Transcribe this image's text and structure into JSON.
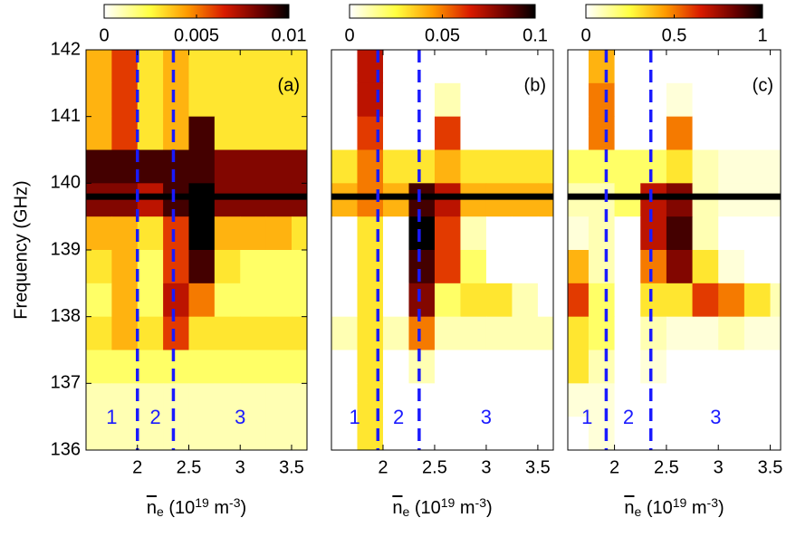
{
  "chart_data": [
    {
      "type": "heatmap",
      "panel_label": "(a)",
      "colormap": "hot_r",
      "clim": [
        0,
        0.01
      ],
      "colorbar_ticks": [
        0,
        0.005,
        0.01
      ],
      "ylabel": "Frequency (GHz)",
      "xlabel": [
        {
          "text": "n",
          "style": "over"
        },
        {
          "text": "e",
          "style": "sub"
        },
        {
          "text": " (10",
          "style": "normal"
        },
        {
          "text": "19",
          "style": "sup"
        },
        {
          "text": " m",
          "style": "normal"
        },
        {
          "text": "-3",
          "style": "sup"
        },
        {
          "text": ")",
          "style": "normal"
        }
      ],
      "xlim": [
        1.5,
        3.65
      ],
      "ylim": [
        136,
        142
      ],
      "xticks": [
        2,
        2.5,
        3,
        3.5
      ],
      "yticks": [
        136,
        137,
        138,
        139,
        140,
        141,
        142
      ],
      "x_edges": [
        1.5,
        1.75,
        2,
        2.25,
        2.5,
        2.75,
        3,
        3.25,
        3.5,
        3.75
      ],
      "y_edges": [
        142,
        141.5,
        141,
        140.5,
        140,
        139.5,
        139,
        138.5,
        138,
        137.5,
        137,
        136.5,
        136
      ],
      "z": [
        [
          0.004,
          0.006,
          0.003,
          0.004,
          0.003,
          0.003,
          0.003,
          0.003,
          0.003
        ],
        [
          0.004,
          0.006,
          0.003,
          0.004,
          0.003,
          0.003,
          0.003,
          0.003,
          0.003
        ],
        [
          0.004,
          0.006,
          0.003,
          0.004,
          0.009,
          0.003,
          0.003,
          0.003,
          0.003
        ],
        [
          0.009,
          0.009,
          0.009,
          0.009,
          0.009,
          0.008,
          0.008,
          0.008,
          0.008
        ],
        [
          0.008,
          0.008,
          0.007,
          0.009,
          0.01,
          0.008,
          0.008,
          0.008,
          0.008
        ],
        [
          0.004,
          0.004,
          0.003,
          0.006,
          0.01,
          0.004,
          0.004,
          0.004,
          0.003
        ],
        [
          0.003,
          0.004,
          0.002,
          0.006,
          0.009,
          0.003,
          0.002,
          0.002,
          0.002
        ],
        [
          0.002,
          0.004,
          0.002,
          0.007,
          0.005,
          0.002,
          0.002,
          0.002,
          0.002
        ],
        [
          0.003,
          0.004,
          0.003,
          0.006,
          0.003,
          0.003,
          0.003,
          0.003,
          0.003
        ],
        [
          0.002,
          0.002,
          0.002,
          0.002,
          0.002,
          0.002,
          0.002,
          0.002,
          0.002
        ],
        [
          0.001,
          0.001,
          0.001,
          0.001,
          0.001,
          0.001,
          0.001,
          0.001,
          0.001
        ],
        [
          0.001,
          0.001,
          0.001,
          0.001,
          0.001,
          0.001,
          0.001,
          0.001,
          0.001
        ]
      ],
      "hline": 139.8,
      "vlines": [
        2.0,
        2.35
      ],
      "regions": [
        "1",
        "2",
        "3"
      ]
    },
    {
      "type": "heatmap",
      "panel_label": "(b)",
      "colormap": "hot_r",
      "clim": [
        0,
        0.1
      ],
      "colorbar_ticks": [
        0,
        0.05,
        0.1
      ],
      "xlabel": [
        {
          "text": "n",
          "style": "over"
        },
        {
          "text": "e",
          "style": "sub"
        },
        {
          "text": " (10",
          "style": "normal"
        },
        {
          "text": "19",
          "style": "sup"
        },
        {
          "text": " m",
          "style": "normal"
        },
        {
          "text": "-3",
          "style": "sup"
        },
        {
          "text": ")",
          "style": "normal"
        }
      ],
      "xlim": [
        1.5,
        3.65
      ],
      "ylim": [
        136,
        142
      ],
      "xticks": [
        2,
        2.5,
        3,
        3.5
      ],
      "x_edges": [
        1.5,
        1.75,
        2,
        2.25,
        2.5,
        2.75,
        3,
        3.25,
        3.5,
        3.75
      ],
      "y_edges": [
        142,
        141.5,
        141,
        140.5,
        140,
        139.5,
        139,
        138.5,
        138,
        137.5,
        137,
        136.5,
        136
      ],
      "z": [
        [
          0,
          0.07,
          0,
          0,
          0,
          0,
          0,
          0,
          0
        ],
        [
          0,
          0.07,
          0,
          0,
          0.01,
          0,
          0,
          0,
          0
        ],
        [
          0,
          0.06,
          0,
          0,
          0.06,
          0,
          0,
          0,
          0
        ],
        [
          0.03,
          0.05,
          0.03,
          0.03,
          0.04,
          0.03,
          0.03,
          0.03,
          0.03
        ],
        [
          0.04,
          0.05,
          0.04,
          0.09,
          0.07,
          0.04,
          0.04,
          0.04,
          0.04
        ],
        [
          0,
          0.03,
          0,
          0.1,
          0.06,
          0.01,
          0,
          0,
          0
        ],
        [
          0,
          0.03,
          0,
          0.09,
          0.06,
          0.02,
          0,
          0,
          0
        ],
        [
          0,
          0.03,
          0,
          0.08,
          0.02,
          0.03,
          0.03,
          0.01,
          0
        ],
        [
          0.01,
          0.03,
          0.01,
          0.05,
          0.01,
          0.01,
          0.01,
          0.01,
          0.01
        ],
        [
          0,
          0.03,
          0,
          0.01,
          0,
          0,
          0,
          0,
          0
        ],
        [
          0,
          0.03,
          0,
          0,
          0,
          0,
          0,
          0,
          0
        ],
        [
          0,
          0.03,
          0,
          0,
          0,
          0,
          0,
          0,
          0
        ]
      ],
      "hline": 139.8,
      "vlines": [
        1.95,
        2.35
      ],
      "regions": [
        "1",
        "2",
        "3"
      ]
    },
    {
      "type": "heatmap",
      "panel_label": "(c)",
      "colormap": "hot_r",
      "clim": [
        0,
        1
      ],
      "colorbar_ticks": [
        0,
        0.5,
        1
      ],
      "xlabel": [
        {
          "text": "n",
          "style": "over"
        },
        {
          "text": "e",
          "style": "sub"
        },
        {
          "text": " (10",
          "style": "normal"
        },
        {
          "text": "19",
          "style": "sup"
        },
        {
          "text": " m",
          "style": "normal"
        },
        {
          "text": "-3",
          "style": "sup"
        },
        {
          "text": ")",
          "style": "normal"
        }
      ],
      "xlim": [
        1.55,
        3.6
      ],
      "ylim": [
        136,
        142
      ],
      "xticks": [
        2,
        2.5,
        3,
        3.5
      ],
      "x_edges": [
        1.55,
        1.75,
        2,
        2.25,
        2.5,
        2.75,
        3,
        3.25,
        3.5,
        3.75
      ],
      "y_edges": [
        142,
        141.5,
        141,
        140.5,
        140,
        139.5,
        139,
        138.5,
        138,
        137.5,
        137,
        136.5,
        136
      ],
      "z": [
        [
          0,
          0.4,
          0,
          0,
          0,
          0,
          0,
          0,
          0
        ],
        [
          0,
          0.5,
          0,
          0,
          0.05,
          0,
          0,
          0,
          0
        ],
        [
          0,
          0.5,
          0,
          0,
          0.5,
          0,
          0,
          0,
          0
        ],
        [
          0.2,
          0.2,
          0.2,
          0.2,
          0.3,
          0.1,
          0.05,
          0.05,
          0.05
        ],
        [
          0.1,
          0.1,
          0.2,
          0.7,
          0.8,
          0.1,
          0.05,
          0.05,
          0.05
        ],
        [
          0.05,
          0.1,
          0,
          0.7,
          0.9,
          0.1,
          0,
          0,
          0
        ],
        [
          0.4,
          0.1,
          0,
          0.5,
          0.8,
          0.3,
          0.05,
          0,
          0
        ],
        [
          0.6,
          0.2,
          0,
          0.3,
          0.3,
          0.6,
          0.5,
          0.3,
          0.1
        ],
        [
          0.3,
          0.2,
          0,
          0.1,
          0.05,
          0.05,
          0.1,
          0.05,
          0.05
        ],
        [
          0.3,
          0.1,
          0,
          0.05,
          0,
          0,
          0,
          0,
          0
        ],
        [
          0.05,
          0.05,
          0,
          0,
          0,
          0,
          0,
          0,
          0
        ],
        [
          0,
          0.05,
          0,
          0,
          0,
          0,
          0,
          0,
          0
        ]
      ],
      "hline": 139.8,
      "vlines": [
        1.92,
        2.35
      ],
      "regions": [
        "1",
        "2",
        "3"
      ]
    }
  ]
}
